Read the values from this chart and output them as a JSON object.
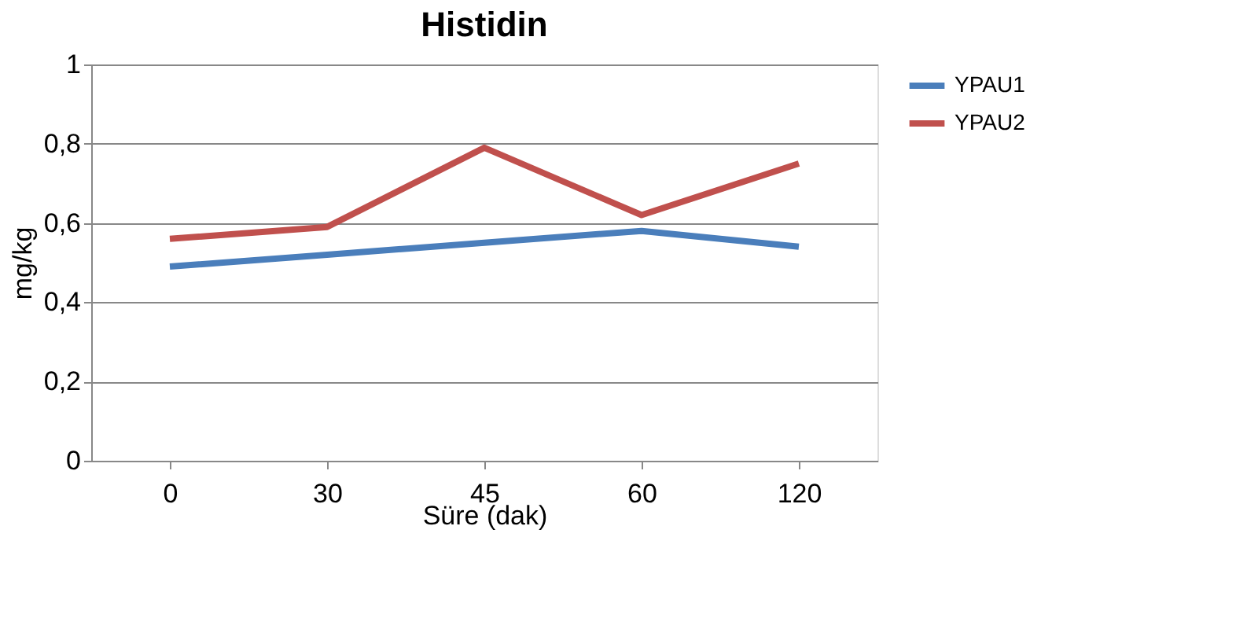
{
  "chart_data": {
    "type": "line",
    "title": "Histidin",
    "xlabel": "Süre (dak)",
    "ylabel": "mg/kg",
    "categories": [
      "0",
      "30",
      "45",
      "60",
      "120"
    ],
    "series": [
      {
        "name": "YPAU1",
        "color": "#4a7ebb",
        "values": [
          0.49,
          0.52,
          0.55,
          0.58,
          0.54
        ]
      },
      {
        "name": "YPAU2",
        "color": "#c0504d",
        "values": [
          0.56,
          0.59,
          0.79,
          0.62,
          0.75
        ]
      }
    ],
    "ylim": [
      0,
      1
    ],
    "yticks": [
      0,
      {
        "value": 0.2,
        "label": "0,2"
      },
      {
        "value": 0.4,
        "label": "0,4"
      },
      {
        "value": 0.6,
        "label": "0,6"
      },
      {
        "value": 0.8,
        "label": "0,8"
      },
      1
    ],
    "grid": "y",
    "legend": "right",
    "marker": "none",
    "line_style": "solid"
  }
}
